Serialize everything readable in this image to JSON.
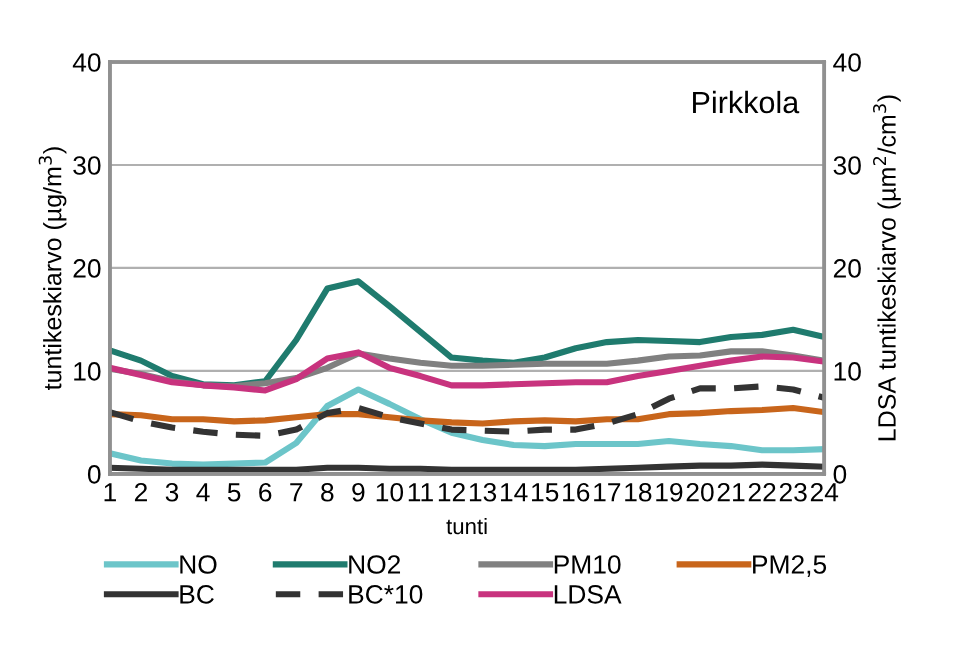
{
  "chart_data": {
    "type": "line",
    "title": "Pirkkola",
    "xlabel": "tunti",
    "ylabel": "tuntikeskiarvo (µg/m$^{3}$)",
    "y2label": "LDSA tuntikeskiarvo (µm$^{2}$/cm$^{3}$)",
    "categories": [
      "1",
      "2",
      "3",
      "4",
      "5",
      "6",
      "7",
      "8",
      "9",
      "10",
      "11",
      "12",
      "13",
      "14",
      "15",
      "16",
      "17",
      "18",
      "19",
      "20",
      "21",
      "22",
      "23",
      "24"
    ],
    "ylim": [
      0,
      40
    ],
    "yticks": [
      0,
      10,
      20,
      30,
      40
    ],
    "y2lim": [
      0,
      40
    ],
    "y2ticks": [
      0,
      10,
      20,
      30,
      40
    ],
    "grid": "y",
    "legend": "bottom",
    "marker": "none",
    "line_style": "solid",
    "series": [
      {
        "name": "NO",
        "color": "#6cc5c9",
        "values": [
          2,
          1.3,
          1,
          0.9,
          1,
          1.1,
          3,
          6.6,
          8.2,
          6.8,
          5.3,
          4,
          3.3,
          2.8,
          2.7,
          2.9,
          2.9,
          2.9,
          3.2,
          2.9,
          2.7,
          2.3,
          2.3,
          2.4
        ]
      },
      {
        "name": "NO2",
        "color": "#1f7b6e",
        "values": [
          12,
          11,
          9.5,
          8.7,
          8.6,
          9,
          13,
          18,
          18.7,
          16.3,
          13.8,
          11.3,
          11,
          10.8,
          11.3,
          12.2,
          12.8,
          13,
          12.9,
          12.8,
          13.3,
          13.5,
          14,
          13.3
        ]
      },
      {
        "name": "PM10",
        "color": "#808080",
        "values": [
          10.2,
          9.7,
          9,
          8.6,
          8.5,
          8.8,
          9.3,
          10.3,
          11.7,
          11.2,
          10.8,
          10.5,
          10.5,
          10.6,
          10.7,
          10.7,
          10.7,
          11,
          11.4,
          11.5,
          11.9,
          11.9,
          11.5,
          11
        ]
      },
      {
        "name": "PM2,5",
        "color": "#c8651b",
        "values": [
          5.8,
          5.7,
          5.3,
          5.3,
          5.1,
          5.2,
          5.5,
          5.8,
          5.8,
          5.5,
          5.2,
          5,
          4.9,
          5.1,
          5.2,
          5.1,
          5.3,
          5.3,
          5.8,
          5.9,
          6.1,
          6.2,
          6.4,
          6
        ]
      },
      {
        "name": "BC",
        "color": "#333333",
        "values": [
          0.6,
          0.5,
          0.4,
          0.4,
          0.4,
          0.4,
          0.4,
          0.6,
          0.6,
          0.5,
          0.5,
          0.4,
          0.4,
          0.4,
          0.4,
          0.4,
          0.5,
          0.6,
          0.7,
          0.8,
          0.8,
          0.9,
          0.8,
          0.7
        ]
      },
      {
        "name": "BC*10",
        "color": "#333333",
        "line_style": "dashed",
        "values": [
          6,
          5.1,
          4.5,
          4.1,
          3.8,
          3.7,
          4.3,
          5.9,
          6.4,
          5.5,
          4.9,
          4.3,
          4.2,
          4.1,
          4.3,
          4.3,
          4.9,
          5.8,
          7.3,
          8.3,
          8.3,
          8.5,
          8.2,
          7.4
        ]
      },
      {
        "name": "LDSA",
        "color": "#c8337e",
        "axis": "y2",
        "values": [
          10.3,
          9.6,
          8.9,
          8.6,
          8.4,
          8.1,
          9.2,
          11.2,
          11.8,
          10.3,
          9.5,
          8.6,
          8.6,
          8.7,
          8.8,
          8.9,
          8.9,
          9.5,
          10,
          10.5,
          11,
          11.4,
          11.3,
          10.9
        ]
      }
    ]
  }
}
